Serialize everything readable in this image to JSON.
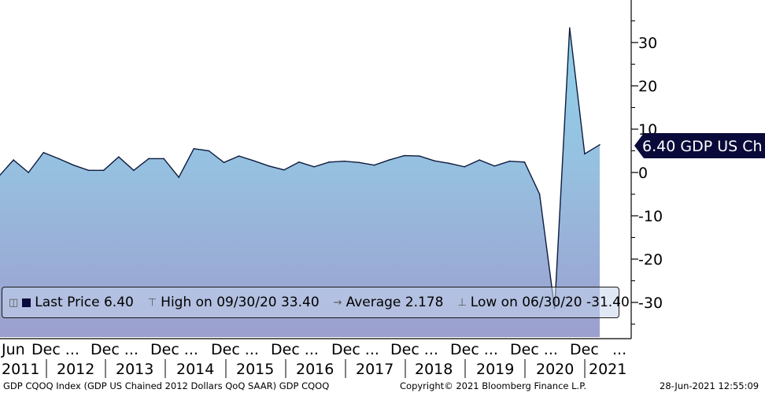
{
  "chart_data": {
    "type": "area",
    "series": [
      {
        "name": "GDP US Ch",
        "x": [
          "2011-03-31",
          "2011-06-30",
          "2011-09-30",
          "2011-12-31",
          "2012-03-31",
          "2012-06-30",
          "2012-09-30",
          "2012-12-31",
          "2013-03-31",
          "2013-06-30",
          "2013-09-30",
          "2013-12-31",
          "2014-03-31",
          "2014-06-30",
          "2014-09-30",
          "2014-12-31",
          "2015-03-31",
          "2015-06-30",
          "2015-09-30",
          "2015-12-31",
          "2016-03-31",
          "2016-06-30",
          "2016-09-30",
          "2016-12-31",
          "2017-03-31",
          "2017-06-30",
          "2017-09-30",
          "2017-12-31",
          "2018-03-31",
          "2018-06-30",
          "2018-09-30",
          "2018-12-31",
          "2019-03-31",
          "2019-06-30",
          "2019-09-30",
          "2019-12-31",
          "2020-03-31",
          "2020-06-30",
          "2020-09-30",
          "2020-12-31",
          "2021-03-31"
        ],
        "values": [
          -1.0,
          2.9,
          0.0,
          4.6,
          3.2,
          1.7,
          0.5,
          0.5,
          3.6,
          0.5,
          3.2,
          3.2,
          -1.1,
          5.5,
          5.0,
          2.3,
          3.8,
          2.7,
          1.5,
          0.6,
          2.4,
          1.3,
          2.4,
          2.6,
          2.3,
          1.7,
          2.9,
          3.9,
          3.8,
          2.7,
          2.1,
          1.3,
          2.9,
          1.5,
          2.6,
          2.4,
          -5.0,
          -31.4,
          33.4,
          4.3,
          6.4
        ]
      }
    ],
    "ylim": [
      -40,
      40
    ],
    "y_ticks": [
      -30,
      -20,
      -10,
      0,
      10,
      20,
      30
    ],
    "y_tick_labels": [
      "-30",
      "-20",
      "-10",
      "0",
      "10",
      "20",
      "30"
    ],
    "y_axis_position": "right",
    "x_tick_labels_top": [
      "Jun",
      "Dec ...",
      "Dec ...",
      "Dec ...",
      "Dec ...",
      "Dec ...",
      "Dec ...",
      "Dec ...",
      "Dec ...",
      "Dec ...",
      "Dec",
      "..."
    ],
    "x_year_labels": [
      "2011",
      "2012",
      "2013",
      "2014",
      "2015",
      "2016",
      "2017",
      "2018",
      "2019",
      "2020",
      "2021"
    ],
    "last_value_tag": "6.40 GDP US Ch",
    "legend_placement": "bottom",
    "legend": {
      "last_price": "Last Price 6.40",
      "high": "High on 09/30/20 33.40",
      "average": "Average 2.178",
      "low": "Low on 06/30/20 -31.40"
    },
    "colors": {
      "fill_top": "#8fcde6",
      "fill_bottom": "#9aa3d0",
      "line": "#0d1b3e",
      "tag_bg": "#0a0a3a"
    },
    "grid": false
  },
  "footer": {
    "left": "GDP CQOQ Index (GDP US Chained 2012 Dollars QoQ SAAR) GDP CQOQ",
    "center": "Copyright© 2021 Bloomberg Finance L.P.",
    "right": "28-Jun-2021 12:55:09"
  }
}
